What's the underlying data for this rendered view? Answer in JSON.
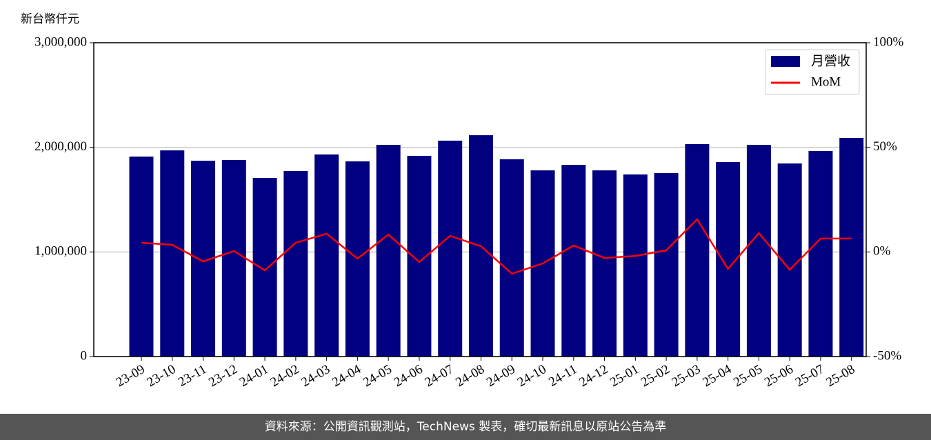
{
  "chart_data": {
    "type": "bar",
    "y_label": "新台幣仟元",
    "categories": [
      "23-09",
      "23-10",
      "23-11",
      "23-12",
      "24-01",
      "24-02",
      "24-03",
      "24-04",
      "24-05",
      "24-06",
      "24-07",
      "24-08",
      "24-09",
      "24-10",
      "24-11",
      "24-12",
      "25-01",
      "25-02",
      "25-03",
      "25-04",
      "25-05",
      "25-06",
      "25-07",
      "25-08"
    ],
    "series": [
      {
        "name": "月營收",
        "type": "bar",
        "color": "#000080",
        "values": [
          1912000,
          1971000,
          1872000,
          1879000,
          1708000,
          1774000,
          1932000,
          1866000,
          2024000,
          1919000,
          2064000,
          2116000,
          1886000,
          1780000,
          1833000,
          1780000,
          1741000,
          1754000,
          2031000,
          1859000,
          2024000,
          1846000,
          1965000,
          2090000
        ]
      },
      {
        "name": "MoM",
        "type": "line",
        "axis": "y2",
        "color": "#ff0000",
        "values": [
          4.4,
          3.4,
          -4.5,
          0.4,
          -8.8,
          4.4,
          8.7,
          -3.2,
          8.3,
          -4.8,
          7.7,
          2.7,
          -10.4,
          -5.5,
          3.1,
          -2.9,
          -1.9,
          0.8,
          15.6,
          -8.1,
          9.0,
          -8.5,
          6.4,
          6.4
        ]
      }
    ],
    "ylim": [
      0,
      3000000
    ],
    "yticks": [
      {
        "value": 0,
        "label": "0"
      },
      {
        "value": 1000000,
        "label": "1,000,000"
      },
      {
        "value": 2000000,
        "label": "2,000,000"
      },
      {
        "value": 3000000,
        "label": "3,000,000"
      }
    ],
    "y2lim": [
      -50,
      100
    ],
    "y2ticks": [
      {
        "value": -50,
        "label": "-50%"
      },
      {
        "value": 0,
        "label": "0%"
      },
      {
        "value": 50,
        "label": "50%"
      },
      {
        "value": 100,
        "label": "100%"
      }
    ],
    "grid": true,
    "legend": "upper right"
  },
  "footer": "資料來源：公開資訊觀測站，TechNews 製表，確切最新訊息以原站公告為準"
}
